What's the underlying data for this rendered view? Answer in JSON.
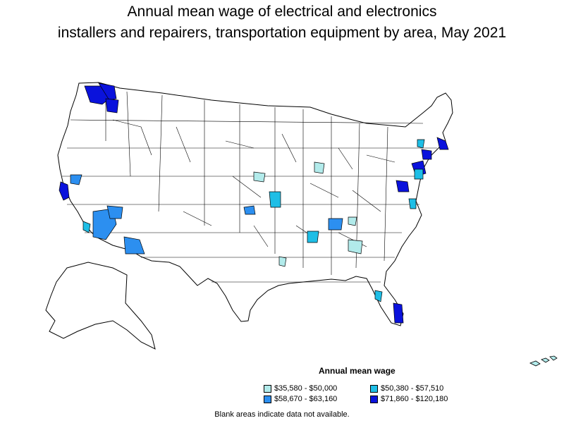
{
  "title": {
    "line1": "Annual mean wage of electrical and electronics",
    "line2": "installers and repairers, transportation equipment by area, May 2021"
  },
  "legend": {
    "title": "Annual mean wage",
    "items": [
      {
        "label": "$35,580 - $50,000",
        "color": "#b2ebeb"
      },
      {
        "label": "$50,380 - $57,510",
        "color": "#1ebee6"
      },
      {
        "label": "$58,670 - $63,160",
        "color": "#2c8ff0"
      },
      {
        "label": "$71,860 - $120,180",
        "color": "#0a12dc"
      }
    ]
  },
  "note": "Blank areas indicate data not available."
}
